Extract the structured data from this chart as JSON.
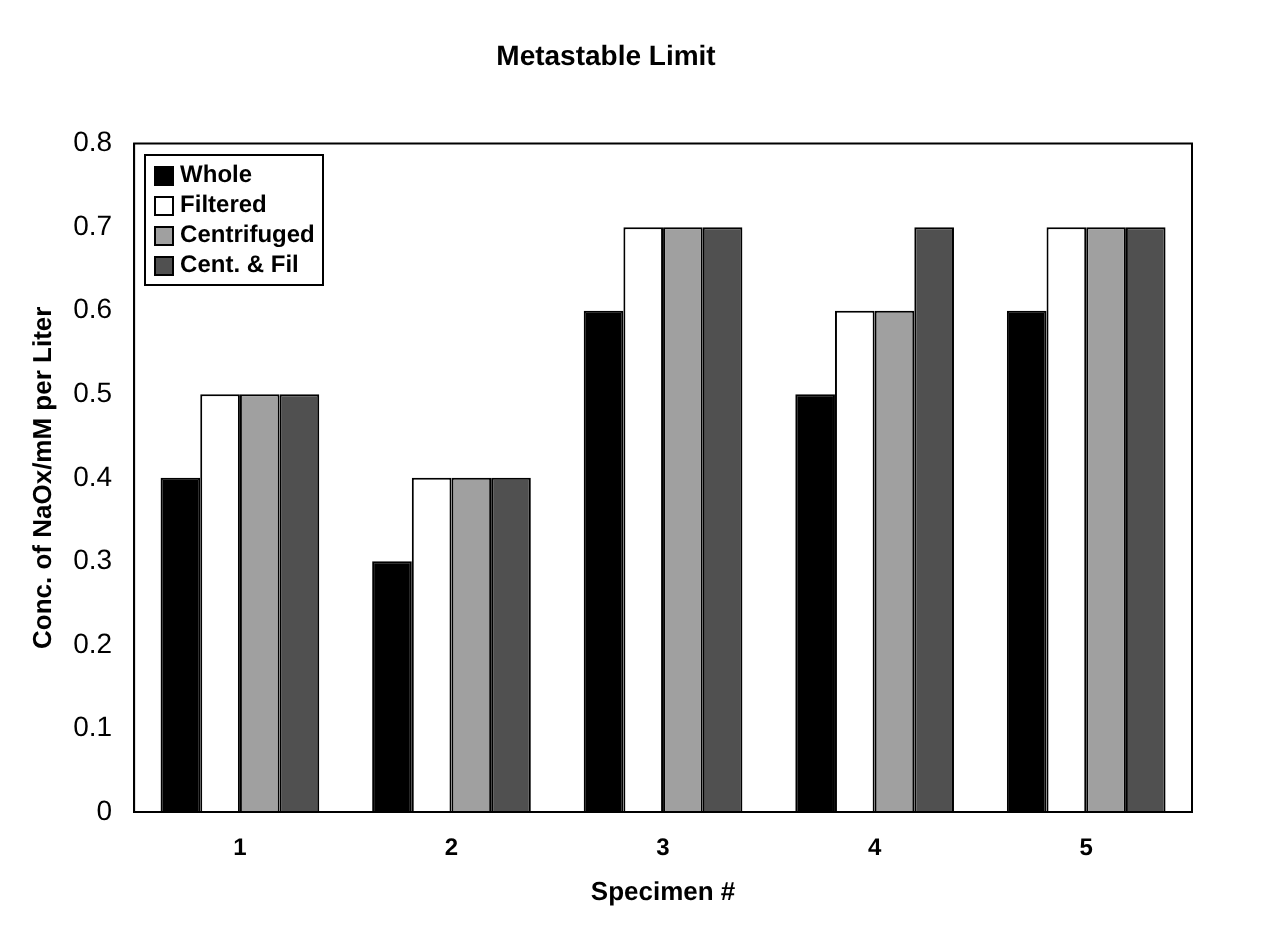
{
  "chart_data": {
    "type": "bar",
    "title": "Metastable Limit",
    "xlabel": "Specimen #",
    "ylabel": "Conc. of NaOx/mM per Liter",
    "categories": [
      "1",
      "2",
      "3",
      "4",
      "5"
    ],
    "series": [
      {
        "name": "Whole",
        "color": "#000000",
        "values": [
          0.4,
          0.3,
          0.6,
          0.5,
          0.6
        ]
      },
      {
        "name": "Filtered",
        "color": "#ffffff",
        "values": [
          0.5,
          0.4,
          0.7,
          0.6,
          0.7
        ]
      },
      {
        "name": "Centrifuged",
        "color": "#a0a0a0",
        "values": [
          0.5,
          0.4,
          0.7,
          0.6,
          0.7
        ]
      },
      {
        "name": "Cent. & Fil",
        "color": "#505050",
        "values": [
          0.5,
          0.4,
          0.7,
          0.7,
          0.7
        ]
      }
    ],
    "ylim": [
      0,
      0.8
    ],
    "yticks": [
      0,
      0.1,
      0.2,
      0.3,
      0.4,
      0.5,
      0.6,
      0.7,
      0.8
    ],
    "grid": false,
    "legend": "top left"
  }
}
